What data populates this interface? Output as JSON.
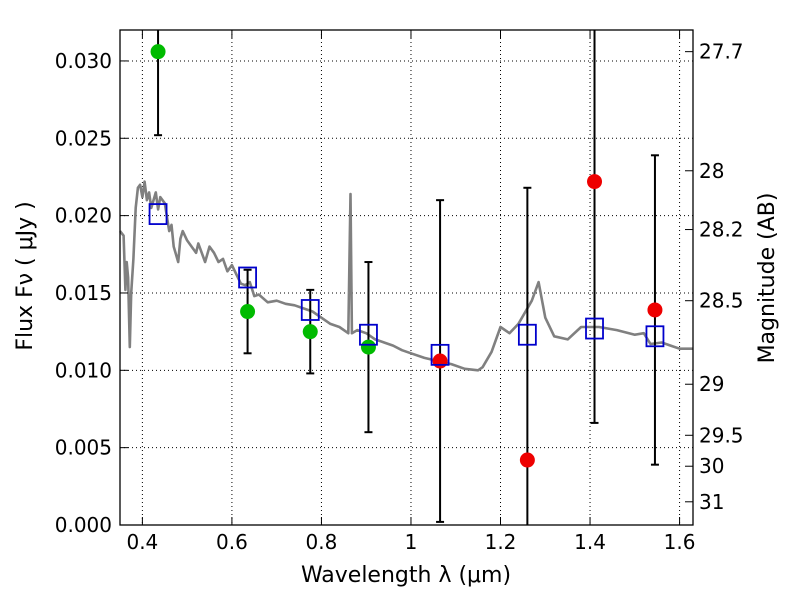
{
  "chart_data": {
    "type": "scatter",
    "xlabel": "Wavelength  λ (μm)",
    "ylabel": "Flux  Fν  ( μJy )",
    "ylabel_right": "Magnitude (AB)",
    "xlim": [
      0.35,
      1.63
    ],
    "ylim": [
      0.0,
      0.032
    ],
    "grid": true,
    "x_ticks": [
      0.4,
      0.6,
      0.8,
      1.0,
      1.2,
      1.4,
      1.6
    ],
    "x_tick_labels": [
      "0.4",
      "0.6",
      "0.8",
      "1",
      "1.2",
      "1.4",
      "1.6"
    ],
    "y_ticks": [
      0.0,
      0.005,
      0.01,
      0.015,
      0.02,
      0.025,
      0.03
    ],
    "y_tick_labels": [
      "0.000",
      "0.005",
      "0.010",
      "0.015",
      "0.020",
      "0.025",
      "0.030"
    ],
    "right_ticks": [
      {
        "flux": 0.0306,
        "label": "27.7"
      },
      {
        "flux": 0.0229,
        "label": "28"
      },
      {
        "flux": 0.0191,
        "label": "28.2"
      },
      {
        "flux": 0.0145,
        "label": "28.5"
      },
      {
        "flux": 0.0091,
        "label": "29"
      },
      {
        "flux": 0.0058,
        "label": "29.5"
      },
      {
        "flux": 0.0038,
        "label": "30"
      },
      {
        "flux": 0.0015,
        "label": "31"
      }
    ],
    "series": [
      {
        "kind": "measured-detection",
        "color": "#00bb00",
        "points": [
          {
            "x": 0.435,
            "y": 0.0306,
            "lo": 0.0252,
            "hi": 0.036
          },
          {
            "x": 0.635,
            "y": 0.0138,
            "lo": 0.0111,
            "hi": 0.0165
          },
          {
            "x": 0.775,
            "y": 0.0125,
            "lo": 0.0098,
            "hi": 0.0152
          },
          {
            "x": 0.905,
            "y": 0.0115,
            "lo": 0.006,
            "hi": 0.017
          }
        ]
      },
      {
        "kind": "measured-low-significance",
        "color": "#ee0000",
        "points": [
          {
            "x": 1.065,
            "y": 0.0106,
            "lo": 0.0002,
            "hi": 0.021
          },
          {
            "x": 1.26,
            "y": 0.0042,
            "lo": -0.0134,
            "hi": 0.0218
          },
          {
            "x": 1.41,
            "y": 0.0222,
            "lo": 0.0066,
            "hi": 0.0378
          },
          {
            "x": 1.545,
            "y": 0.0139,
            "lo": 0.0039,
            "hi": 0.0239
          }
        ]
      },
      {
        "kind": "model-photometry",
        "color": "#0000cc",
        "points": [
          {
            "x": 0.435,
            "y": 0.0201
          },
          {
            "x": 0.635,
            "y": 0.016
          },
          {
            "x": 0.775,
            "y": 0.0139
          },
          {
            "x": 0.905,
            "y": 0.0123
          },
          {
            "x": 1.065,
            "y": 0.011
          },
          {
            "x": 1.26,
            "y": 0.0123
          },
          {
            "x": 1.41,
            "y": 0.0127
          },
          {
            "x": 1.545,
            "y": 0.0122
          }
        ]
      },
      {
        "kind": "model-spectrum",
        "color": "#808080",
        "points": [
          {
            "x": 0.35,
            "y": 0.019
          },
          {
            "x": 0.358,
            "y": 0.0187
          },
          {
            "x": 0.362,
            "y": 0.0152
          },
          {
            "x": 0.365,
            "y": 0.017
          },
          {
            "x": 0.368,
            "y": 0.016
          },
          {
            "x": 0.372,
            "y": 0.0115
          },
          {
            "x": 0.375,
            "y": 0.015
          },
          {
            "x": 0.38,
            "y": 0.0172
          },
          {
            "x": 0.385,
            "y": 0.0205
          },
          {
            "x": 0.39,
            "y": 0.0218
          },
          {
            "x": 0.395,
            "y": 0.022
          },
          {
            "x": 0.4,
            "y": 0.0212
          },
          {
            "x": 0.405,
            "y": 0.0222
          },
          {
            "x": 0.41,
            "y": 0.021
          },
          {
            "x": 0.415,
            "y": 0.0215
          },
          {
            "x": 0.42,
            "y": 0.0205
          },
          {
            "x": 0.43,
            "y": 0.0215
          },
          {
            "x": 0.435,
            "y": 0.0204
          },
          {
            "x": 0.44,
            "y": 0.0212
          },
          {
            "x": 0.45,
            "y": 0.0208
          },
          {
            "x": 0.46,
            "y": 0.019
          },
          {
            "x": 0.465,
            "y": 0.0194
          },
          {
            "x": 0.47,
            "y": 0.018
          },
          {
            "x": 0.48,
            "y": 0.017
          },
          {
            "x": 0.485,
            "y": 0.0185
          },
          {
            "x": 0.49,
            "y": 0.019
          },
          {
            "x": 0.5,
            "y": 0.0184
          },
          {
            "x": 0.51,
            "y": 0.018
          },
          {
            "x": 0.52,
            "y": 0.0176
          },
          {
            "x": 0.525,
            "y": 0.0182
          },
          {
            "x": 0.53,
            "y": 0.0178
          },
          {
            "x": 0.54,
            "y": 0.017
          },
          {
            "x": 0.55,
            "y": 0.018
          },
          {
            "x": 0.56,
            "y": 0.0176
          },
          {
            "x": 0.57,
            "y": 0.017
          },
          {
            "x": 0.58,
            "y": 0.0172
          },
          {
            "x": 0.59,
            "y": 0.0164
          },
          {
            "x": 0.6,
            "y": 0.0168
          },
          {
            "x": 0.61,
            "y": 0.0162
          },
          {
            "x": 0.62,
            "y": 0.0156
          },
          {
            "x": 0.63,
            "y": 0.0155
          },
          {
            "x": 0.64,
            "y": 0.0157
          },
          {
            "x": 0.65,
            "y": 0.0148
          },
          {
            "x": 0.66,
            "y": 0.0149
          },
          {
            "x": 0.68,
            "y": 0.0144
          },
          {
            "x": 0.7,
            "y": 0.0145
          },
          {
            "x": 0.72,
            "y": 0.0143
          },
          {
            "x": 0.74,
            "y": 0.0142
          },
          {
            "x": 0.76,
            "y": 0.014
          },
          {
            "x": 0.78,
            "y": 0.0138
          },
          {
            "x": 0.8,
            "y": 0.0134
          },
          {
            "x": 0.82,
            "y": 0.013
          },
          {
            "x": 0.84,
            "y": 0.0128
          },
          {
            "x": 0.86,
            "y": 0.0124
          },
          {
            "x": 0.865,
            "y": 0.0214
          },
          {
            "x": 0.868,
            "y": 0.0124
          },
          {
            "x": 0.88,
            "y": 0.0126
          },
          {
            "x": 0.9,
            "y": 0.0124
          },
          {
            "x": 0.92,
            "y": 0.012
          },
          {
            "x": 0.94,
            "y": 0.0118
          },
          {
            "x": 0.96,
            "y": 0.0116
          },
          {
            "x": 0.98,
            "y": 0.0113
          },
          {
            "x": 1.0,
            "y": 0.0111
          },
          {
            "x": 1.03,
            "y": 0.0108
          },
          {
            "x": 1.06,
            "y": 0.0106
          },
          {
            "x": 1.09,
            "y": 0.0104
          },
          {
            "x": 1.12,
            "y": 0.0101
          },
          {
            "x": 1.15,
            "y": 0.01
          },
          {
            "x": 1.16,
            "y": 0.0102
          },
          {
            "x": 1.18,
            "y": 0.0112
          },
          {
            "x": 1.2,
            "y": 0.0128
          },
          {
            "x": 1.22,
            "y": 0.0124
          },
          {
            "x": 1.24,
            "y": 0.013
          },
          {
            "x": 1.27,
            "y": 0.0145
          },
          {
            "x": 1.285,
            "y": 0.0157
          },
          {
            "x": 1.3,
            "y": 0.0134
          },
          {
            "x": 1.32,
            "y": 0.0122
          },
          {
            "x": 1.35,
            "y": 0.012
          },
          {
            "x": 1.38,
            "y": 0.0128
          },
          {
            "x": 1.42,
            "y": 0.0128
          },
          {
            "x": 1.46,
            "y": 0.0126
          },
          {
            "x": 1.5,
            "y": 0.0123
          },
          {
            "x": 1.52,
            "y": 0.0124
          },
          {
            "x": 1.535,
            "y": 0.0117
          },
          {
            "x": 1.56,
            "y": 0.0118
          },
          {
            "x": 1.58,
            "y": 0.0116
          },
          {
            "x": 1.6,
            "y": 0.0114
          },
          {
            "x": 1.63,
            "y": 0.0114
          }
        ]
      }
    ]
  }
}
